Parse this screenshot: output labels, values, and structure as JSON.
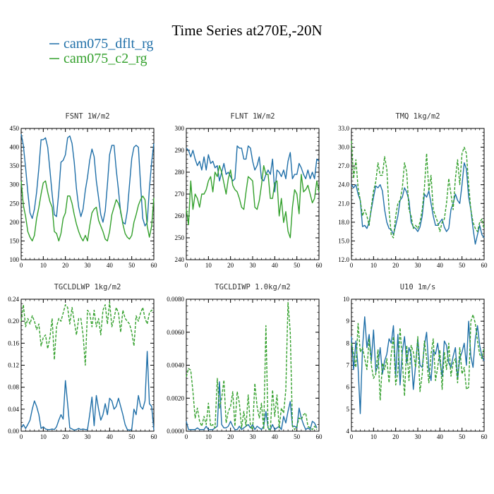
{
  "figure": {
    "title": "Time Series at270E,-20N",
    "colors": {
      "blue": "#1f6fa8",
      "green": "#33a02c"
    }
  },
  "legend": [
    {
      "label": "cam075_dflt_rg",
      "color": "#1f6fa8",
      "style": "solid"
    },
    {
      "label": "cam075_c2_rg",
      "color": "#33a02c",
      "style": "dashed"
    }
  ],
  "chart_data": [
    {
      "type": "line",
      "title": "FSNT  1W/m2",
      "xlim": [
        0,
        60
      ],
      "ylim": [
        100,
        450
      ],
      "xticks": [
        "0",
        "10",
        "20",
        "30",
        "40",
        "50",
        "60"
      ],
      "yticks": [
        "100",
        "150",
        "200",
        "250",
        "300",
        "350",
        "400",
        "450"
      ],
      "series": [
        {
          "name": "cam075_dflt_rg",
          "color": "#1f6fa8",
          "dashed": false,
          "values": [
            435,
            405,
            345,
            280,
            225,
            210,
            235,
            280,
            345,
            420,
            420,
            425,
            400,
            340,
            275,
            220,
            215,
            280,
            360,
            365,
            380,
            425,
            430,
            410,
            360,
            290,
            240,
            215,
            235,
            285,
            320,
            365,
            395,
            375,
            310,
            265,
            220,
            200,
            230,
            300,
            380,
            405,
            405,
            340,
            285,
            225,
            200,
            195,
            230,
            300,
            370,
            400,
            405,
            400,
            300,
            210,
            190,
            200,
            290,
            360,
            410
          ]
        },
        {
          "name": "cam075_c2_rg",
          "color": "#33a02c",
          "dashed": false,
          "values": [
            310,
            245,
            215,
            175,
            160,
            150,
            165,
            210,
            240,
            275,
            305,
            310,
            280,
            255,
            240,
            175,
            170,
            150,
            170,
            210,
            225,
            270,
            270,
            250,
            220,
            195,
            175,
            160,
            150,
            165,
            150,
            190,
            225,
            235,
            240,
            205,
            190,
            175,
            155,
            150,
            175,
            220,
            240,
            260,
            250,
            230,
            195,
            170,
            160,
            155,
            165,
            200,
            220,
            245,
            260,
            270,
            260,
            190,
            160,
            190,
            265
          ]
        }
      ]
    },
    {
      "type": "line",
      "title": "FLNT  1W/m2",
      "xlim": [
        0,
        60
      ],
      "ylim": [
        240,
        300
      ],
      "xticks": [
        "0",
        "10",
        "20",
        "30",
        "40",
        "50",
        "60"
      ],
      "yticks": [
        "240",
        "250",
        "260",
        "270",
        "280",
        "290",
        "300"
      ],
      "series": [
        {
          "name": "cam075_dflt_rg",
          "color": "#1f6fa8",
          "dashed": false,
          "values": [
            291,
            290,
            287,
            290,
            286,
            283,
            285,
            281,
            287,
            281,
            288,
            284,
            285,
            282,
            283,
            276,
            280,
            284,
            279,
            280,
            278,
            276,
            277,
            292,
            291,
            291,
            286,
            286,
            292,
            291,
            285,
            281,
            283,
            287,
            277,
            276,
            279,
            281,
            279,
            286,
            271,
            281,
            280,
            278,
            281,
            277,
            285,
            289,
            277,
            279,
            279,
            284,
            282,
            279,
            277,
            281,
            277,
            280,
            277,
            286,
            285
          ]
        },
        {
          "name": "cam075_c2_rg",
          "color": "#33a02c",
          "dashed": false,
          "values": [
            263,
            256,
            276,
            263,
            270,
            268,
            264,
            270,
            270,
            272,
            276,
            278,
            271,
            280,
            278,
            283,
            280,
            275,
            270,
            277,
            281,
            274,
            272,
            271,
            268,
            264,
            263,
            271,
            278,
            277,
            276,
            264,
            263,
            267,
            274,
            283,
            279,
            279,
            268,
            268,
            275,
            276,
            260,
            268,
            257,
            262,
            253,
            250,
            264,
            272,
            270,
            261,
            279,
            271,
            272,
            274,
            270,
            266,
            268,
            276,
            271
          ]
        }
      ]
    },
    {
      "type": "line",
      "title": "TMQ  1kg/m2",
      "xlim": [
        0,
        60
      ],
      "ylim": [
        12,
        33
      ],
      "xticks": [
        "0",
        "10",
        "20",
        "30",
        "40",
        "50",
        "60"
      ],
      "yticks": [
        "12.0",
        "15.0",
        "18.0",
        "21.0",
        "24.0",
        "27.0",
        "30.0",
        "33.0"
      ],
      "series": [
        {
          "name": "cam075_dflt_rg",
          "color": "#1f6fa8",
          "dashed": false,
          "values": [
            24,
            23.5,
            24,
            22.5,
            21.5,
            17.3,
            17.5,
            17,
            18,
            20,
            22,
            23.8,
            23.5,
            24,
            23,
            20,
            18,
            17,
            16.8,
            16,
            17.5,
            19,
            21.5,
            22,
            23.5,
            22.8,
            21.5,
            18,
            17.2,
            17,
            16.5,
            17.2,
            19,
            22.5,
            22,
            23,
            21,
            19,
            17.5,
            17.5,
            18,
            18.5,
            17.2,
            16.5,
            17,
            20,
            21,
            22.5,
            21.5,
            21,
            24,
            27.5,
            26.5,
            22,
            20,
            17,
            14.5,
            16,
            17.5,
            16,
            15.5
          ]
        },
        {
          "name": "cam075_c2_rg",
          "color": "#33a02c",
          "dashed": true,
          "values": [
            31,
            25,
            28,
            23.5,
            21.5,
            19,
            20,
            19,
            17.5,
            20.5,
            23,
            24.5,
            27.5,
            25.5,
            25.5,
            28.5,
            26.5,
            20,
            16,
            15.5,
            19,
            21,
            21.5,
            23.5,
            27.5,
            26,
            20,
            19,
            17,
            17.5,
            17,
            18,
            20,
            23.5,
            29,
            23,
            25.5,
            20,
            19,
            18,
            16.5,
            18,
            18.5,
            21,
            25,
            22.5,
            20,
            25,
            28,
            24,
            29,
            30,
            29,
            24,
            20,
            18,
            17,
            16.5,
            18,
            18.5,
            17
          ]
        }
      ]
    },
    {
      "type": "line",
      "title": "TGCLDLWP  1kg/m2",
      "xlim": [
        0,
        60
      ],
      "ylim": [
        0,
        0.24
      ],
      "xticks": [
        "0",
        "10",
        "20",
        "30",
        "40",
        "50",
        "60"
      ],
      "yticks": [
        "0.00",
        "0.04",
        "0.08",
        "0.12",
        "0.16",
        "0.20",
        "0.24"
      ],
      "series": [
        {
          "name": "cam075_dflt_rg",
          "color": "#1f6fa8",
          "dashed": false,
          "values": [
            0.006,
            0.012,
            0.005,
            0.012,
            0.02,
            0.04,
            0.055,
            0.045,
            0.03,
            0.005,
            0.008,
            0.004,
            0.003,
            0.003,
            0.004,
            0.003,
            0.008,
            0.02,
            0.03,
            0.022,
            0.092,
            0.05,
            0.006,
            0.004,
            0.002,
            0.003,
            0.005,
            0.003,
            0.004,
            0.003,
            0.003,
            0.03,
            0.062,
            0.01,
            0.065,
            0.04,
            0.02,
            0.03,
            0.05,
            0.03,
            0.06,
            0.055,
            0.04,
            0.045,
            0.06,
            0.045,
            0.03,
            0.012,
            0.003,
            0.002,
            0.003,
            0.04,
            0.03,
            0.065,
            0.045,
            0.04,
            0.055,
            0.145,
            0.05,
            0.045,
            0.002
          ]
        },
        {
          "name": "cam075_c2_rg",
          "color": "#33a02c",
          "dashed": true,
          "values": [
            0.2,
            0.23,
            0.19,
            0.205,
            0.195,
            0.21,
            0.2,
            0.185,
            0.195,
            0.155,
            0.17,
            0.175,
            0.15,
            0.17,
            0.205,
            0.13,
            0.19,
            0.205,
            0.2,
            0.215,
            0.23,
            0.225,
            0.195,
            0.225,
            0.2,
            0.175,
            0.205,
            0.205,
            0.175,
            0.12,
            0.22,
            0.215,
            0.19,
            0.22,
            0.19,
            0.205,
            0.175,
            0.22,
            0.23,
            0.195,
            0.235,
            0.19,
            0.205,
            0.225,
            0.215,
            0.18,
            0.22,
            0.205,
            0.2,
            0.195,
            0.18,
            0.155,
            0.21,
            0.2,
            0.215,
            0.225,
            0.205,
            0.195,
            0.215,
            0.22,
            0.22
          ]
        }
      ]
    },
    {
      "type": "line",
      "title": "TGCLDIWP  1.0kg/m2",
      "xlim": [
        0,
        60
      ],
      "ylim": [
        0,
        0.008
      ],
      "xticks": [
        "0",
        "10",
        "20",
        "30",
        "40",
        "50",
        "60"
      ],
      "yticks": [
        "0.0000",
        "0.0020",
        "0.0040",
        "0.0060",
        "0.0080"
      ],
      "series": [
        {
          "name": "cam075_dflt_rg",
          "color": "#1f6fa8",
          "dashed": false,
          "values": [
            0.0006,
            0.0001,
            0.0001,
            0.0001,
            0.0001,
            0.0002,
            0.0001,
            0.0001,
            0.0001,
            0.0003,
            0.0001,
            0.0001,
            0.0001,
            0.0002,
            0.0003,
            0.003,
            0.0004,
            0.0002,
            0.0002,
            0.0003,
            0.0006,
            0.0003,
            0.0001,
            0.0001,
            0.0003,
            0.0001,
            0.0002,
            0.0003,
            0.0004,
            0.0002,
            0.0004,
            0.0001,
            0.0003,
            0.0002,
            0.0001,
            0.0003,
            0.0012,
            0.0002,
            0.0001,
            0.0004,
            0.0001,
            0.0002,
            0.0003,
            0.0001,
            0.0009,
            0.0005,
            0.0012,
            0.0018,
            0.0003,
            0.0003,
            0.0002,
            0.0014,
            0.0008,
            0.0004,
            0.0001,
            0.0002,
            0.0001,
            0.0006,
            0.0005,
            0.0002
          ]
        },
        {
          "name": "cam075_c2_rg",
          "color": "#33a02c",
          "dashed": true,
          "values": [
            0.0033,
            0.0038,
            0.0037,
            0.0024,
            0.0008,
            0.0014,
            0.0006,
            0.0003,
            0.0009,
            0.0004,
            0.0017,
            0.0003,
            0.0004,
            0.0002,
            0.0032,
            0.0014,
            0.002,
            0.0031,
            0.0005,
            0.0012,
            0.0015,
            0.0024,
            0.0003,
            0.0024,
            0.0017,
            0.0002,
            0.0012,
            0.0003,
            0.0022,
            0.0003,
            0.0001,
            0.0029,
            0.0015,
            0.0008,
            0.0017,
            0.0001,
            0.0064,
            0.0001,
            0.0001,
            0.0025,
            0.0009,
            0.0022,
            0.0002,
            0.0014,
            0.0011,
            0.0025,
            0.0078,
            0.006,
            0.0003,
            0.0001,
            0.0003,
            0.0008,
            0.0007,
            0.001,
            0.0011,
            0.0003,
            0.0002,
            0.0001,
            0.0003,
            0.0001
          ]
        }
      ]
    },
    {
      "type": "line",
      "title": "U10  1m/s",
      "xlim": [
        0,
        60
      ],
      "ylim": [
        4,
        10
      ],
      "xticks": [
        "0",
        "10",
        "20",
        "30",
        "40",
        "50",
        "60"
      ],
      "yticks": [
        "4",
        "5",
        "6",
        "7",
        "8",
        "9",
        "10"
      ],
      "series": [
        {
          "name": "cam075_dflt_rg",
          "color": "#1f6fa8",
          "dashed": false,
          "values": [
            8.3,
            6.8,
            8.1,
            6.9,
            4.8,
            7.8,
            9.2,
            7.8,
            8.4,
            7.2,
            8.6,
            6.7,
            7.0,
            7.8,
            6.6,
            7.2,
            7.5,
            8.2,
            8.0,
            8.8,
            6.5,
            8.4,
            6.1,
            7.6,
            8.3,
            7.1,
            7.8,
            7.5,
            5.9,
            7.0,
            8.2,
            7.0,
            6.9,
            7.9,
            8.5,
            6.8,
            6.3,
            7.7,
            7.5,
            8.0,
            7.2,
            6.5,
            8.1,
            7.9,
            7.1,
            6.9,
            7.4,
            7.8,
            6.4,
            7.3,
            7.6,
            8.0,
            7.0,
            9.0,
            7.4,
            6.9,
            8.2,
            8.8,
            7.9,
            7.4,
            7.2
          ]
        },
        {
          "name": "cam075_c2_rg",
          "color": "#33a02c",
          "dashed": true,
          "values": [
            8.0,
            7.5,
            6.9,
            8.9,
            7.6,
            7.8,
            7.3,
            6.8,
            8.2,
            7.0,
            6.4,
            6.6,
            7.7,
            5.4,
            7.1,
            6.8,
            7.3,
            6.2,
            7.5,
            8.3,
            6.1,
            6.7,
            8.7,
            7.2,
            5.6,
            7.9,
            6.3,
            7.9,
            7.6,
            6.9,
            8.3,
            5.8,
            6.6,
            8.1,
            7.3,
            6.2,
            7.5,
            8.2,
            6.3,
            6.9,
            7.7,
            5.9,
            7.6,
            6.8,
            8.0,
            6.5,
            7.1,
            7.3,
            6.2,
            7.8,
            6.6,
            6.9,
            5.9,
            6.0,
            9.0,
            9.3,
            8.9,
            8.1,
            7.5,
            7.3,
            7.8
          ]
        }
      ]
    }
  ]
}
